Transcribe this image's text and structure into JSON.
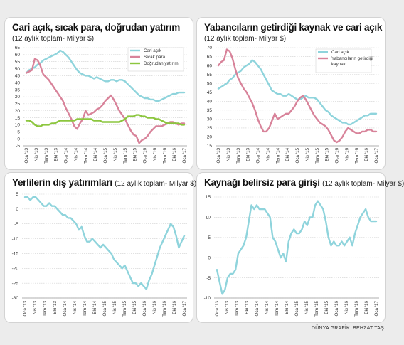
{
  "x_ticks": [
    "Oca '13",
    "Nis '13",
    "Tem '13",
    "Eki '13",
    "Oca '14",
    "Nis '14",
    "Tem '14",
    "Eki '14",
    "Oca '15",
    "Nis '15",
    "Tem '15",
    "Eki '15",
    "Oca '16",
    "Nis '16",
    "Tem '16",
    "Eki '16",
    "Oca '17"
  ],
  "colors": {
    "blue": "#8fd4dc",
    "pink": "#d8839a",
    "green": "#8cc63e"
  },
  "credit": "DÜNYA GRAFİK: BEHZAT TAŞ",
  "chart_data": [
    {
      "type": "line",
      "title": "Cari açık, sıcak para, doğrudan yatırım",
      "subtitle": "(12 aylık toplam- Milyar $)",
      "ylim": [
        -5,
        65
      ],
      "yticks": [
        -5,
        0,
        5,
        10,
        15,
        20,
        25,
        30,
        35,
        40,
        45,
        50,
        55,
        60,
        65
      ],
      "legend": "top-right",
      "series": [
        {
          "name": "Cari açık",
          "color": "blue",
          "values": [
            47,
            49,
            50,
            51,
            53,
            54,
            56,
            57,
            58,
            59,
            60,
            61,
            63,
            62,
            60,
            58,
            55,
            52,
            49,
            47,
            46,
            45,
            45,
            44,
            43,
            44,
            43,
            42,
            41,
            41,
            42,
            42,
            41,
            42,
            42,
            41,
            39,
            37,
            35,
            33,
            31,
            30,
            29,
            29,
            28,
            28,
            27,
            27,
            28,
            29,
            30,
            31,
            32,
            32,
            33,
            33,
            33
          ]
        },
        {
          "name": "Sıcak para",
          "color": "pink",
          "values": [
            47,
            48,
            49,
            57,
            56,
            52,
            46,
            44,
            42,
            39,
            36,
            33,
            30,
            27,
            22,
            18,
            14,
            9,
            7,
            11,
            14,
            20,
            17,
            18,
            19,
            21,
            22,
            24,
            27,
            29,
            31,
            28,
            24,
            20,
            17,
            14,
            10,
            6,
            3,
            2,
            -3,
            -1,
            0,
            2,
            5,
            7,
            9,
            9,
            9,
            10,
            11,
            12,
            12,
            11,
            10,
            11,
            11
          ]
        },
        {
          "name": "Doğrudan yatırım",
          "color": "green",
          "values": [
            13,
            13,
            12,
            10,
            9,
            9,
            10,
            10,
            10,
            11,
            11,
            12,
            13,
            13,
            13,
            13,
            13,
            13,
            14,
            14,
            14,
            14,
            14,
            14,
            13,
            13,
            13,
            12,
            12,
            12,
            12,
            12,
            12,
            12,
            13,
            14,
            16,
            16,
            16,
            17,
            17,
            16,
            16,
            15,
            15,
            15,
            14,
            14,
            13,
            12,
            11,
            11,
            11,
            11,
            11,
            10,
            10
          ]
        }
      ]
    },
    {
      "type": "line",
      "title": "Yabancıların getirdiği kaynak ve cari açık",
      "subtitle": "(12 aylık toplam- Milyar $)",
      "ylim": [
        15,
        70
      ],
      "yticks": [
        15,
        20,
        25,
        30,
        35,
        40,
        45,
        50,
        55,
        60,
        65,
        70
      ],
      "legend": "top-right",
      "series": [
        {
          "name": "Cari açık",
          "color": "blue",
          "values": [
            47,
            48,
            49,
            50,
            52,
            53,
            55,
            56,
            57,
            59,
            60,
            61,
            63,
            62,
            60,
            58,
            55,
            52,
            49,
            46,
            45,
            44,
            44,
            43,
            43,
            44,
            43,
            42,
            41,
            41,
            42,
            43,
            42,
            42,
            42,
            41,
            39,
            37,
            35,
            34,
            32,
            31,
            30,
            29,
            28,
            28,
            27,
            27,
            28,
            29,
            30,
            31,
            32,
            32,
            33,
            33,
            33
          ]
        },
        {
          "name": "Yabancıların getirdiği kaynak",
          "color": "pink",
          "values": [
            60,
            62,
            63,
            69,
            68,
            64,
            58,
            53,
            50,
            47,
            45,
            42,
            39,
            35,
            30,
            26,
            23,
            23,
            25,
            29,
            33,
            30,
            31,
            32,
            33,
            33,
            35,
            37,
            40,
            42,
            43,
            41,
            38,
            35,
            32,
            30,
            28,
            27,
            26,
            24,
            21,
            18,
            17,
            18,
            20,
            23,
            25,
            24,
            23,
            22,
            22,
            23,
            23,
            24,
            24,
            23,
            23
          ]
        }
      ]
    },
    {
      "type": "line",
      "title": "Yerlilerin dış yatırımları",
      "subtitle": "(12 aylık toplam- Milyar $)",
      "ylim": [
        -30,
        5
      ],
      "yticks": [
        -30,
        -25,
        -20,
        -15,
        -10,
        -5,
        0,
        5
      ],
      "series": [
        {
          "color": "blue",
          "values": [
            4,
            4,
            3,
            4,
            4,
            3,
            2,
            1,
            1,
            2,
            1,
            1,
            0,
            -1,
            -2,
            -2,
            -3,
            -3,
            -4,
            -5,
            -7,
            -6,
            -9,
            -11,
            -11,
            -10,
            -11,
            -12,
            -13,
            -12,
            -13,
            -14,
            -15,
            -17,
            -18,
            -19,
            -20,
            -19,
            -21,
            -23,
            -25,
            -25,
            -26,
            -25,
            -26,
            -27,
            -24,
            -22,
            -19,
            -16,
            -13,
            -11,
            -9,
            -7,
            -5,
            -6,
            -9,
            -13,
            -11,
            -9
          ]
        }
      ]
    },
    {
      "type": "line",
      "title": "Kaynağı belirsiz para girişi",
      "subtitle": "(12 aylık toplam- Milyar $)",
      "ylim": [
        -10,
        15
      ],
      "yticks": [
        -10,
        -5,
        0,
        5,
        10,
        15
      ],
      "series": [
        {
          "color": "blue",
          "values": [
            -3,
            -6,
            -9,
            -8,
            -5,
            -4,
            -4,
            -3,
            1,
            2,
            3,
            5,
            9,
            13,
            12,
            13,
            12,
            12,
            12,
            11,
            10,
            5,
            4,
            2,
            0,
            1,
            -1,
            4,
            6,
            7,
            6,
            6,
            7,
            9,
            8,
            10,
            10,
            13,
            14,
            13,
            12,
            9,
            5,
            3,
            4,
            3,
            3,
            4,
            3,
            4,
            5,
            3,
            6,
            8,
            10,
            11,
            12,
            10,
            9,
            9,
            9
          ]
        }
      ]
    }
  ]
}
